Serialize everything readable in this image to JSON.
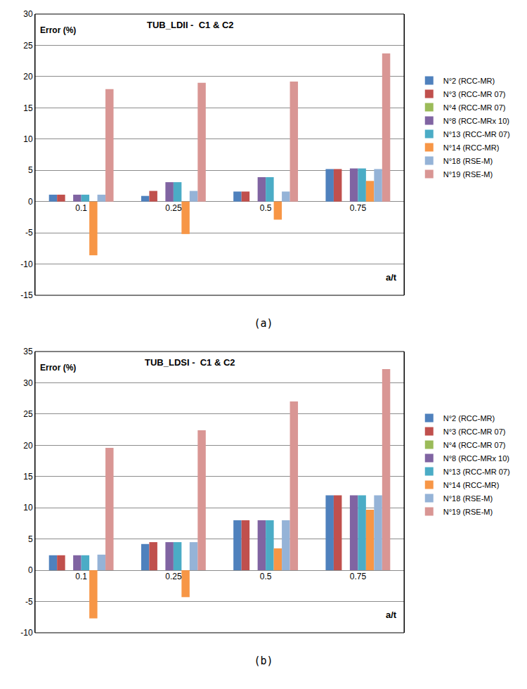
{
  "chart_data": [
    {
      "type": "bar",
      "title": "TUB_LDII -  C1 & C2",
      "y_label": "Error (%)",
      "x_label": "a/t",
      "caption": "(a)",
      "categories": [
        "0.1",
        "0.25",
        "0.5",
        "0.75"
      ],
      "ylim": [
        -15,
        30
      ],
      "yticks": [
        -15,
        -10,
        -5,
        0,
        5,
        10,
        15,
        20,
        25,
        30
      ],
      "grid": true,
      "legend": "right",
      "series": [
        {
          "name": "N°2 (RCC-MR)",
          "color": "#4f81bd",
          "values": [
            1.1,
            0.9,
            1.6,
            5.2
          ]
        },
        {
          "name": "N°3 (RCC-MR 07)",
          "color": "#c0504d",
          "values": [
            1.1,
            1.7,
            1.6,
            5.2
          ]
        },
        {
          "name": "N°4 (RCC-MR 07)",
          "color": "#9bbb59",
          "values": [
            null,
            null,
            null,
            null
          ]
        },
        {
          "name": "N°8 (RCC-MRx 10)",
          "color": "#8064a2",
          "values": [
            1.1,
            3.1,
            3.9,
            5.3
          ]
        },
        {
          "name": "N°13 (RCC-MR 07)",
          "color": "#4bacc6",
          "values": [
            1.1,
            3.1,
            3.9,
            5.3
          ]
        },
        {
          "name": "N°14 (RCC-MR)",
          "color": "#f79646",
          "values": [
            -8.6,
            -5.2,
            -2.9,
            3.3
          ]
        },
        {
          "name": "N°18 (RSE-M)",
          "color": "#95b3d7",
          "values": [
            1.1,
            1.7,
            1.6,
            5.2
          ]
        },
        {
          "name": "N°19 (RSE-M)",
          "color": "#d99694",
          "values": [
            18,
            19,
            19.2,
            23.7
          ]
        }
      ]
    },
    {
      "type": "bar",
      "title": "TUB_LDSI -  C1 & C2",
      "y_label": "Error (%)",
      "x_label": "a/t",
      "caption": "(b)",
      "categories": [
        "0.1",
        "0.25",
        "0.5",
        "0.75"
      ],
      "ylim": [
        -10,
        35
      ],
      "yticks": [
        -10,
        -5,
        0,
        5,
        10,
        15,
        20,
        25,
        30,
        35
      ],
      "grid": true,
      "legend": "right",
      "series": [
        {
          "name": "N°2 (RCC-MR)",
          "color": "#4f81bd",
          "values": [
            2.4,
            4.2,
            8,
            12
          ]
        },
        {
          "name": "N°3 (RCC-MR 07)",
          "color": "#c0504d",
          "values": [
            2.4,
            4.5,
            8,
            12
          ]
        },
        {
          "name": "N°4 (RCC-MR 07)",
          "color": "#9bbb59",
          "values": [
            null,
            null,
            null,
            null
          ]
        },
        {
          "name": "N°8 (RCC-MRx 10)",
          "color": "#8064a2",
          "values": [
            2.4,
            4.5,
            8,
            12
          ]
        },
        {
          "name": "N°13 (RCC-MR 07)",
          "color": "#4bacc6",
          "values": [
            2.4,
            4.5,
            8,
            12
          ]
        },
        {
          "name": "N°14 (RCC-MR)",
          "color": "#f79646",
          "values": [
            -7.7,
            -4.3,
            3.5,
            9.7
          ]
        },
        {
          "name": "N°18 (RSE-M)",
          "color": "#95b3d7",
          "values": [
            2.5,
            4.5,
            8,
            12
          ]
        },
        {
          "name": "N°19 (RSE-M)",
          "color": "#d99694",
          "values": [
            19.6,
            22.4,
            27,
            32.2
          ]
        }
      ]
    }
  ]
}
